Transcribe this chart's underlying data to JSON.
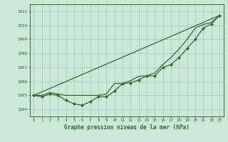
{
  "xlabel": "Graphe pression niveau de la mer (hPa)",
  "xlim": [
    -0.5,
    23.5
  ],
  "ylim": [
    1003.5,
    1011.5
  ],
  "yticks": [
    1004,
    1005,
    1006,
    1007,
    1008,
    1009,
    1010,
    1011
  ],
  "xticks": [
    0,
    1,
    2,
    3,
    4,
    5,
    6,
    7,
    8,
    9,
    10,
    11,
    12,
    13,
    14,
    15,
    16,
    17,
    18,
    19,
    20,
    21,
    22,
    23
  ],
  "bg_color": "#cce8d8",
  "grid_color": "#99ccb0",
  "line_color": "#2d6e2d",
  "marker_color": "#2d6e2d",
  "line_straight": [
    [
      0,
      1005.0
    ],
    [
      23,
      1010.7
    ]
  ],
  "line_mid": [
    1005.0,
    1005.0,
    1005.2,
    1005.1,
    1005.0,
    1005.0,
    1005.0,
    1005.0,
    1005.0,
    1005.1,
    1005.85,
    1005.85,
    1006.05,
    1006.35,
    1006.4,
    1006.6,
    1007.2,
    1007.7,
    1008.3,
    1009.0,
    1009.8,
    1010.05,
    1010.2,
    1010.7
  ],
  "line_dip": [
    1005.0,
    1004.9,
    1005.1,
    1005.0,
    1004.65,
    1004.4,
    1004.3,
    1004.55,
    1004.9,
    1004.9,
    1005.3,
    1005.85,
    1005.9,
    1006.1,
    1006.4,
    1006.4,
    1007.0,
    1007.2,
    1007.7,
    1008.35,
    1009.0,
    1009.8,
    1010.1,
    1010.7
  ]
}
